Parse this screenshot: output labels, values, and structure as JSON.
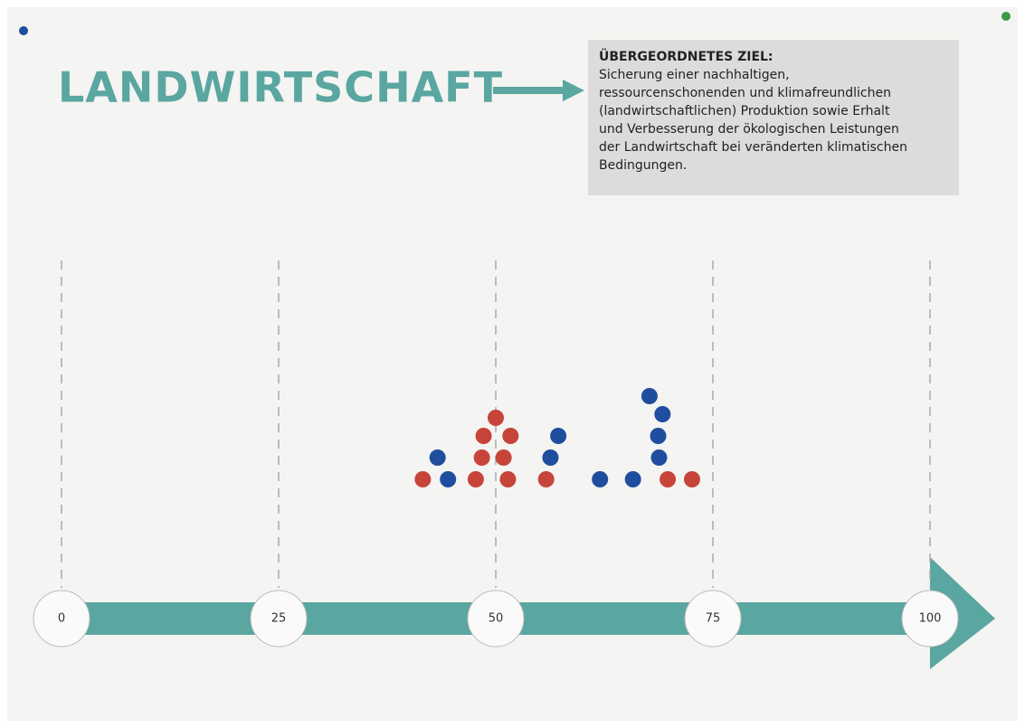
{
  "chart_data": {
    "type": "dot-scale",
    "title": "LANDWIRTSCHAFT",
    "goal_heading": "ÜBERGEORDNETES ZIEL:",
    "goal_lines": [
      "Sicherung einer nachhaltigen,",
      "ressourcenschonenden und klimafreundlichen",
      "(landwirtschaftlichen) Produktion sowie Erhalt",
      "und Verbesserung der ökologischen Leistungen",
      "der Landwirtschaft bei veränderten klimatischen",
      "Bedingungen."
    ],
    "xlim": [
      0,
      100
    ],
    "xticks": [
      0,
      25,
      50,
      75,
      100
    ],
    "axis_color": "#5aa6a1",
    "series": [
      {
        "color": "#c7443b",
        "values": [
          41.6,
          47.7,
          48.4,
          48.6,
          50,
          51.4,
          50.9,
          51.7,
          55.8,
          69.8,
          72.6
        ]
      },
      {
        "color": "#1f4e9e",
        "values": [
          44.5,
          43.3,
          56.3,
          57.2,
          62.0,
          65.8,
          68.8,
          68.7,
          69.2,
          67.7
        ]
      }
    ]
  }
}
